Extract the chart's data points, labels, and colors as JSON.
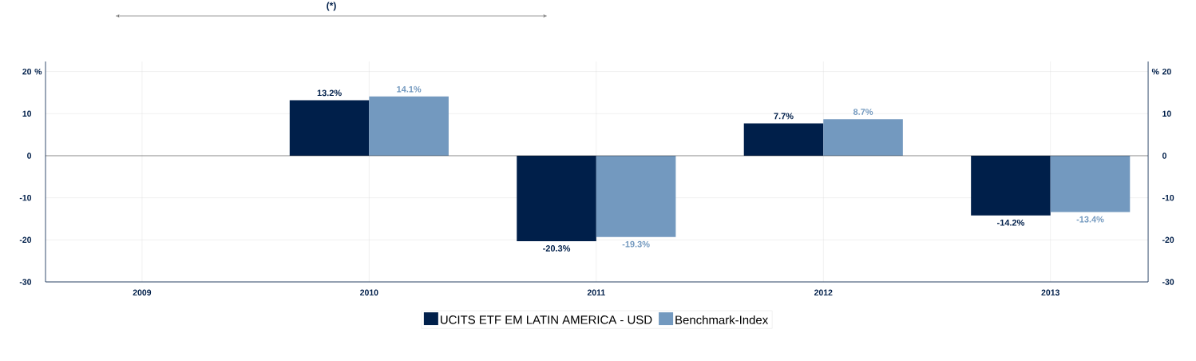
{
  "chart_data": {
    "type": "bar",
    "categories": [
      "2009",
      "2010",
      "2011",
      "2012",
      "2013"
    ],
    "series": [
      {
        "name": "UCITS ETF EM LATIN AMERICA - USD",
        "color": "#001f4a",
        "values": [
          null,
          13.2,
          -20.3,
          7.7,
          -14.2
        ],
        "value_labels": [
          null,
          "13.2%",
          "-20.3%",
          "7.7%",
          "-14.2%"
        ]
      },
      {
        "name": "Benchmark-Index",
        "color": "#7399bf",
        "values": [
          null,
          14.1,
          -19.3,
          8.7,
          -13.4
        ],
        "value_labels": [
          null,
          "14.1%",
          "-19.3%",
          "8.7%",
          "-13.4%"
        ]
      }
    ],
    "ylabel": "%",
    "y2label": "%",
    "ylim": [
      -30,
      22.4
    ],
    "yticks": [
      -30,
      -20,
      -10,
      0,
      10,
      20
    ],
    "y2lim": [
      -30,
      22.4
    ],
    "y2ticks": [
      -30,
      -20,
      -10,
      0,
      10,
      20
    ],
    "ref_lines": [
      {
        "axis": "y",
        "value": 0,
        "color": "#000000"
      }
    ],
    "annotations": [
      "(*)"
    ],
    "grid": true,
    "legend": "bottom"
  }
}
